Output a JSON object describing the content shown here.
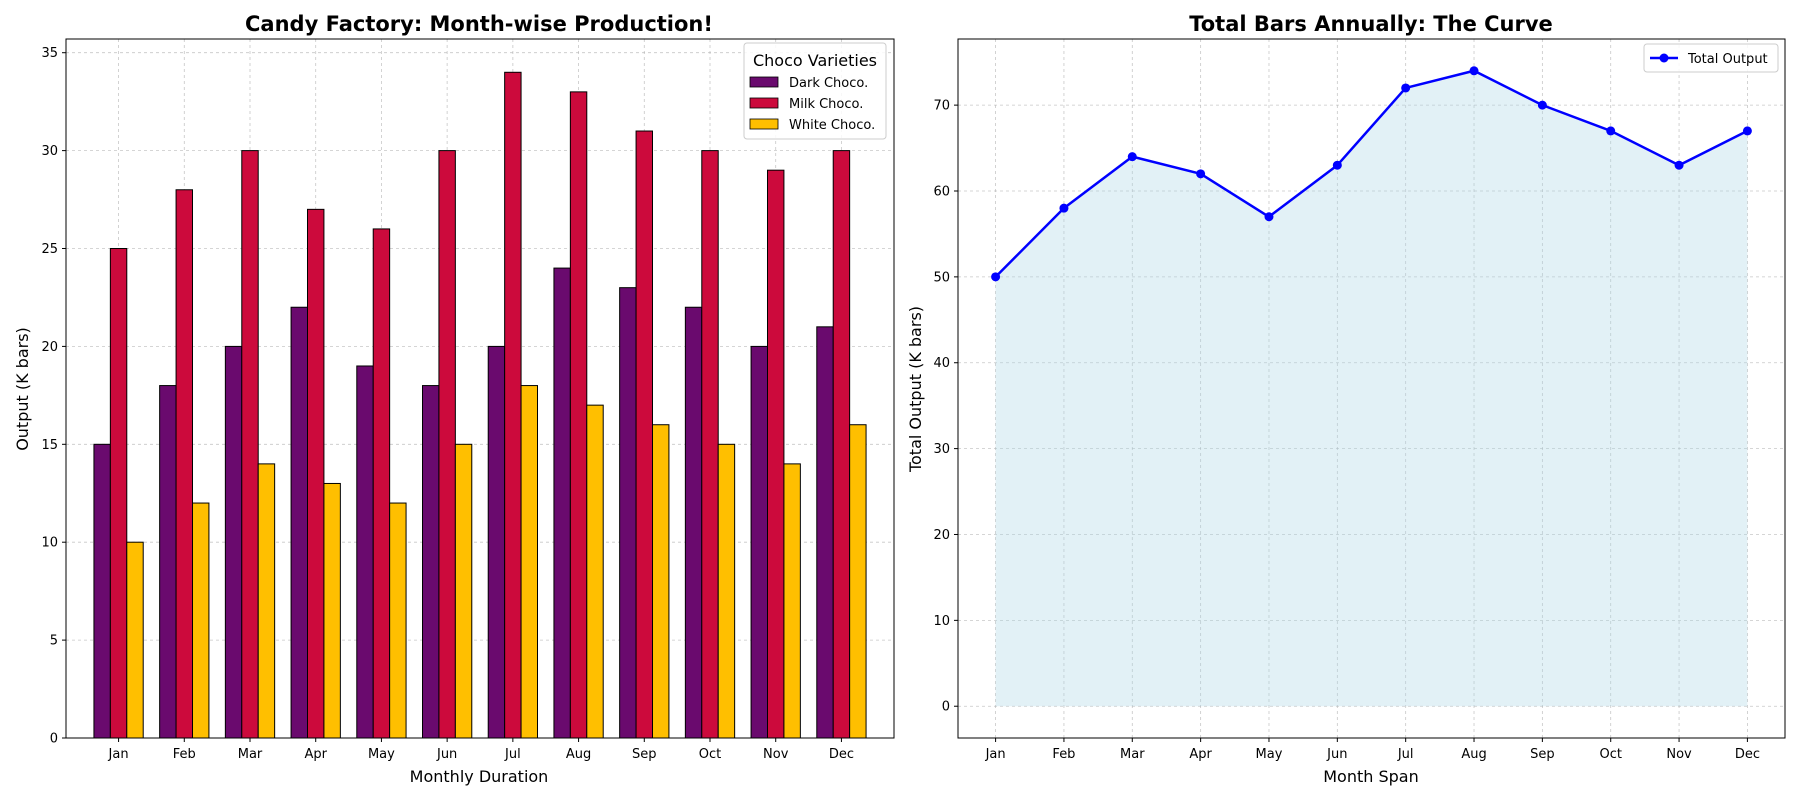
{
  "chart_data": [
    {
      "type": "bar",
      "title": "Candy Factory: Month-wise Production!",
      "xlabel": "Monthly Duration",
      "ylabel": "Output (K bars)",
      "categories": [
        "Jan",
        "Feb",
        "Mar",
        "Apr",
        "May",
        "Jun",
        "Jul",
        "Aug",
        "Sep",
        "Oct",
        "Nov",
        "Dec"
      ],
      "ylim": [
        0,
        35.7
      ],
      "yticks": [
        0,
        5,
        10,
        15,
        20,
        25,
        30,
        35
      ],
      "grid": true,
      "legend_title": "Choco Varieties",
      "legend_position": "top-right",
      "series": [
        {
          "name": "Dark Choco.",
          "color": "#6a0a6e",
          "values": [
            15,
            18,
            20,
            22,
            19,
            18,
            20,
            24,
            23,
            22,
            20,
            21
          ]
        },
        {
          "name": "Milk Choco.",
          "color": "#cc0a3c",
          "values": [
            25,
            28,
            30,
            27,
            26,
            30,
            34,
            33,
            31,
            30,
            29,
            30
          ]
        },
        {
          "name": "White Choco.",
          "color": "#ffbf00",
          "values": [
            10,
            12,
            14,
            13,
            12,
            15,
            18,
            17,
            16,
            15,
            14,
            16
          ]
        }
      ]
    },
    {
      "type": "area",
      "title": "Total Bars Annually: The Curve",
      "xlabel": "Month Span",
      "ylabel": "Total Output (K bars)",
      "categories": [
        "Jan",
        "Feb",
        "Mar",
        "Apr",
        "May",
        "Jun",
        "Jul",
        "Aug",
        "Sep",
        "Oct",
        "Nov",
        "Dec"
      ],
      "ylim": [
        -3.7,
        77.7
      ],
      "yticks": [
        0,
        10,
        20,
        30,
        40,
        50,
        60,
        70
      ],
      "grid": true,
      "legend_position": "top-right",
      "fill_color": "#add8e6",
      "series": [
        {
          "name": "Total Output",
          "color": "#0000ff",
          "values": [
            50,
            58,
            64,
            62,
            57,
            63,
            72,
            74,
            70,
            67,
            63,
            67
          ]
        }
      ]
    }
  ]
}
